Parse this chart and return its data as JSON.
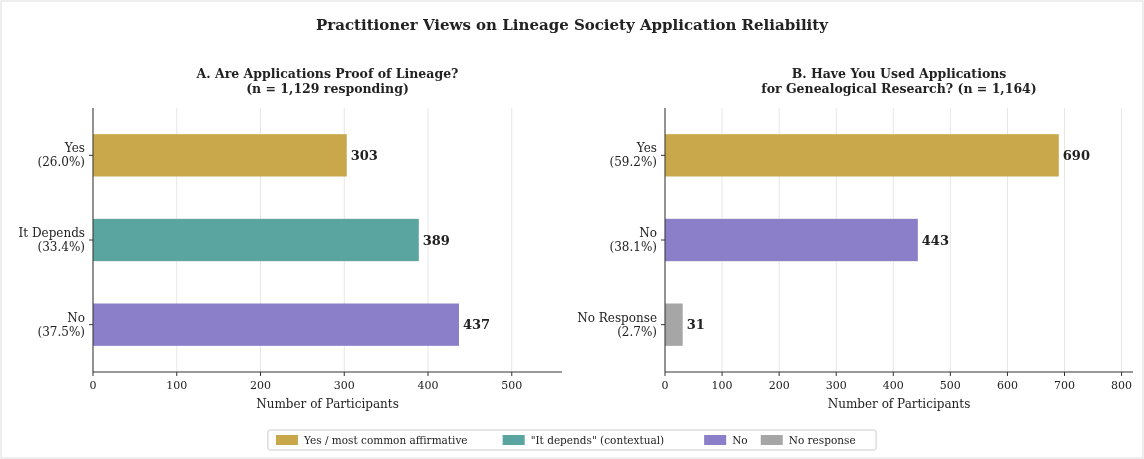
{
  "chart_data": [
    {
      "type": "bar",
      "orientation": "horizontal",
      "title": "Practitioner Views on Lineage Society Application Reliability",
      "subtitle": "A. Are Applications Proof of Lineage?\n(n = 1,129 responding)",
      "xlabel": "Number of Participants",
      "categories": [
        "Yes\n(26.0%)",
        "It Depends\n(33.4%)",
        "No\n(37.5%)"
      ],
      "series": [
        {
          "name": "Yes / most common affirmative",
          "color": "#c9a84c",
          "values": [
            303,
            null,
            null
          ]
        },
        {
          "name": "\"It depends\" (contextual)",
          "color": "#5ba5a0",
          "values": [
            null,
            389,
            null
          ]
        },
        {
          "name": "No",
          "color": "#8a7fc8",
          "values": [
            null,
            null,
            437
          ]
        }
      ],
      "xlim": [
        0,
        560
      ],
      "xticks": [
        0,
        100,
        200,
        300,
        400,
        500
      ],
      "grid": "x",
      "data_labels": true,
      "legend": "bottom"
    },
    {
      "type": "bar",
      "orientation": "horizontal",
      "subtitle": "B. Have You Used Applications\nfor Genealogical Research? (n = 1,164)",
      "xlabel": "Number of Participants",
      "categories": [
        "Yes\n(59.2%)",
        "No\n(38.1%)",
        "No Response\n(2.7%)"
      ],
      "series": [
        {
          "color": "#c9a84c",
          "values": [
            690,
            null,
            null
          ]
        },
        {
          "color": "#8a7fc8",
          "values": [
            null,
            443,
            null
          ]
        },
        {
          "name": "No response",
          "color": "#a6a6a6",
          "values": [
            null,
            null,
            31
          ]
        }
      ],
      "xlim": [
        0,
        820
      ],
      "xticks": [
        0,
        100,
        200,
        300,
        400,
        500,
        600,
        700,
        800
      ],
      "grid": "x",
      "data_labels": true,
      "legend": "bottom"
    }
  ]
}
